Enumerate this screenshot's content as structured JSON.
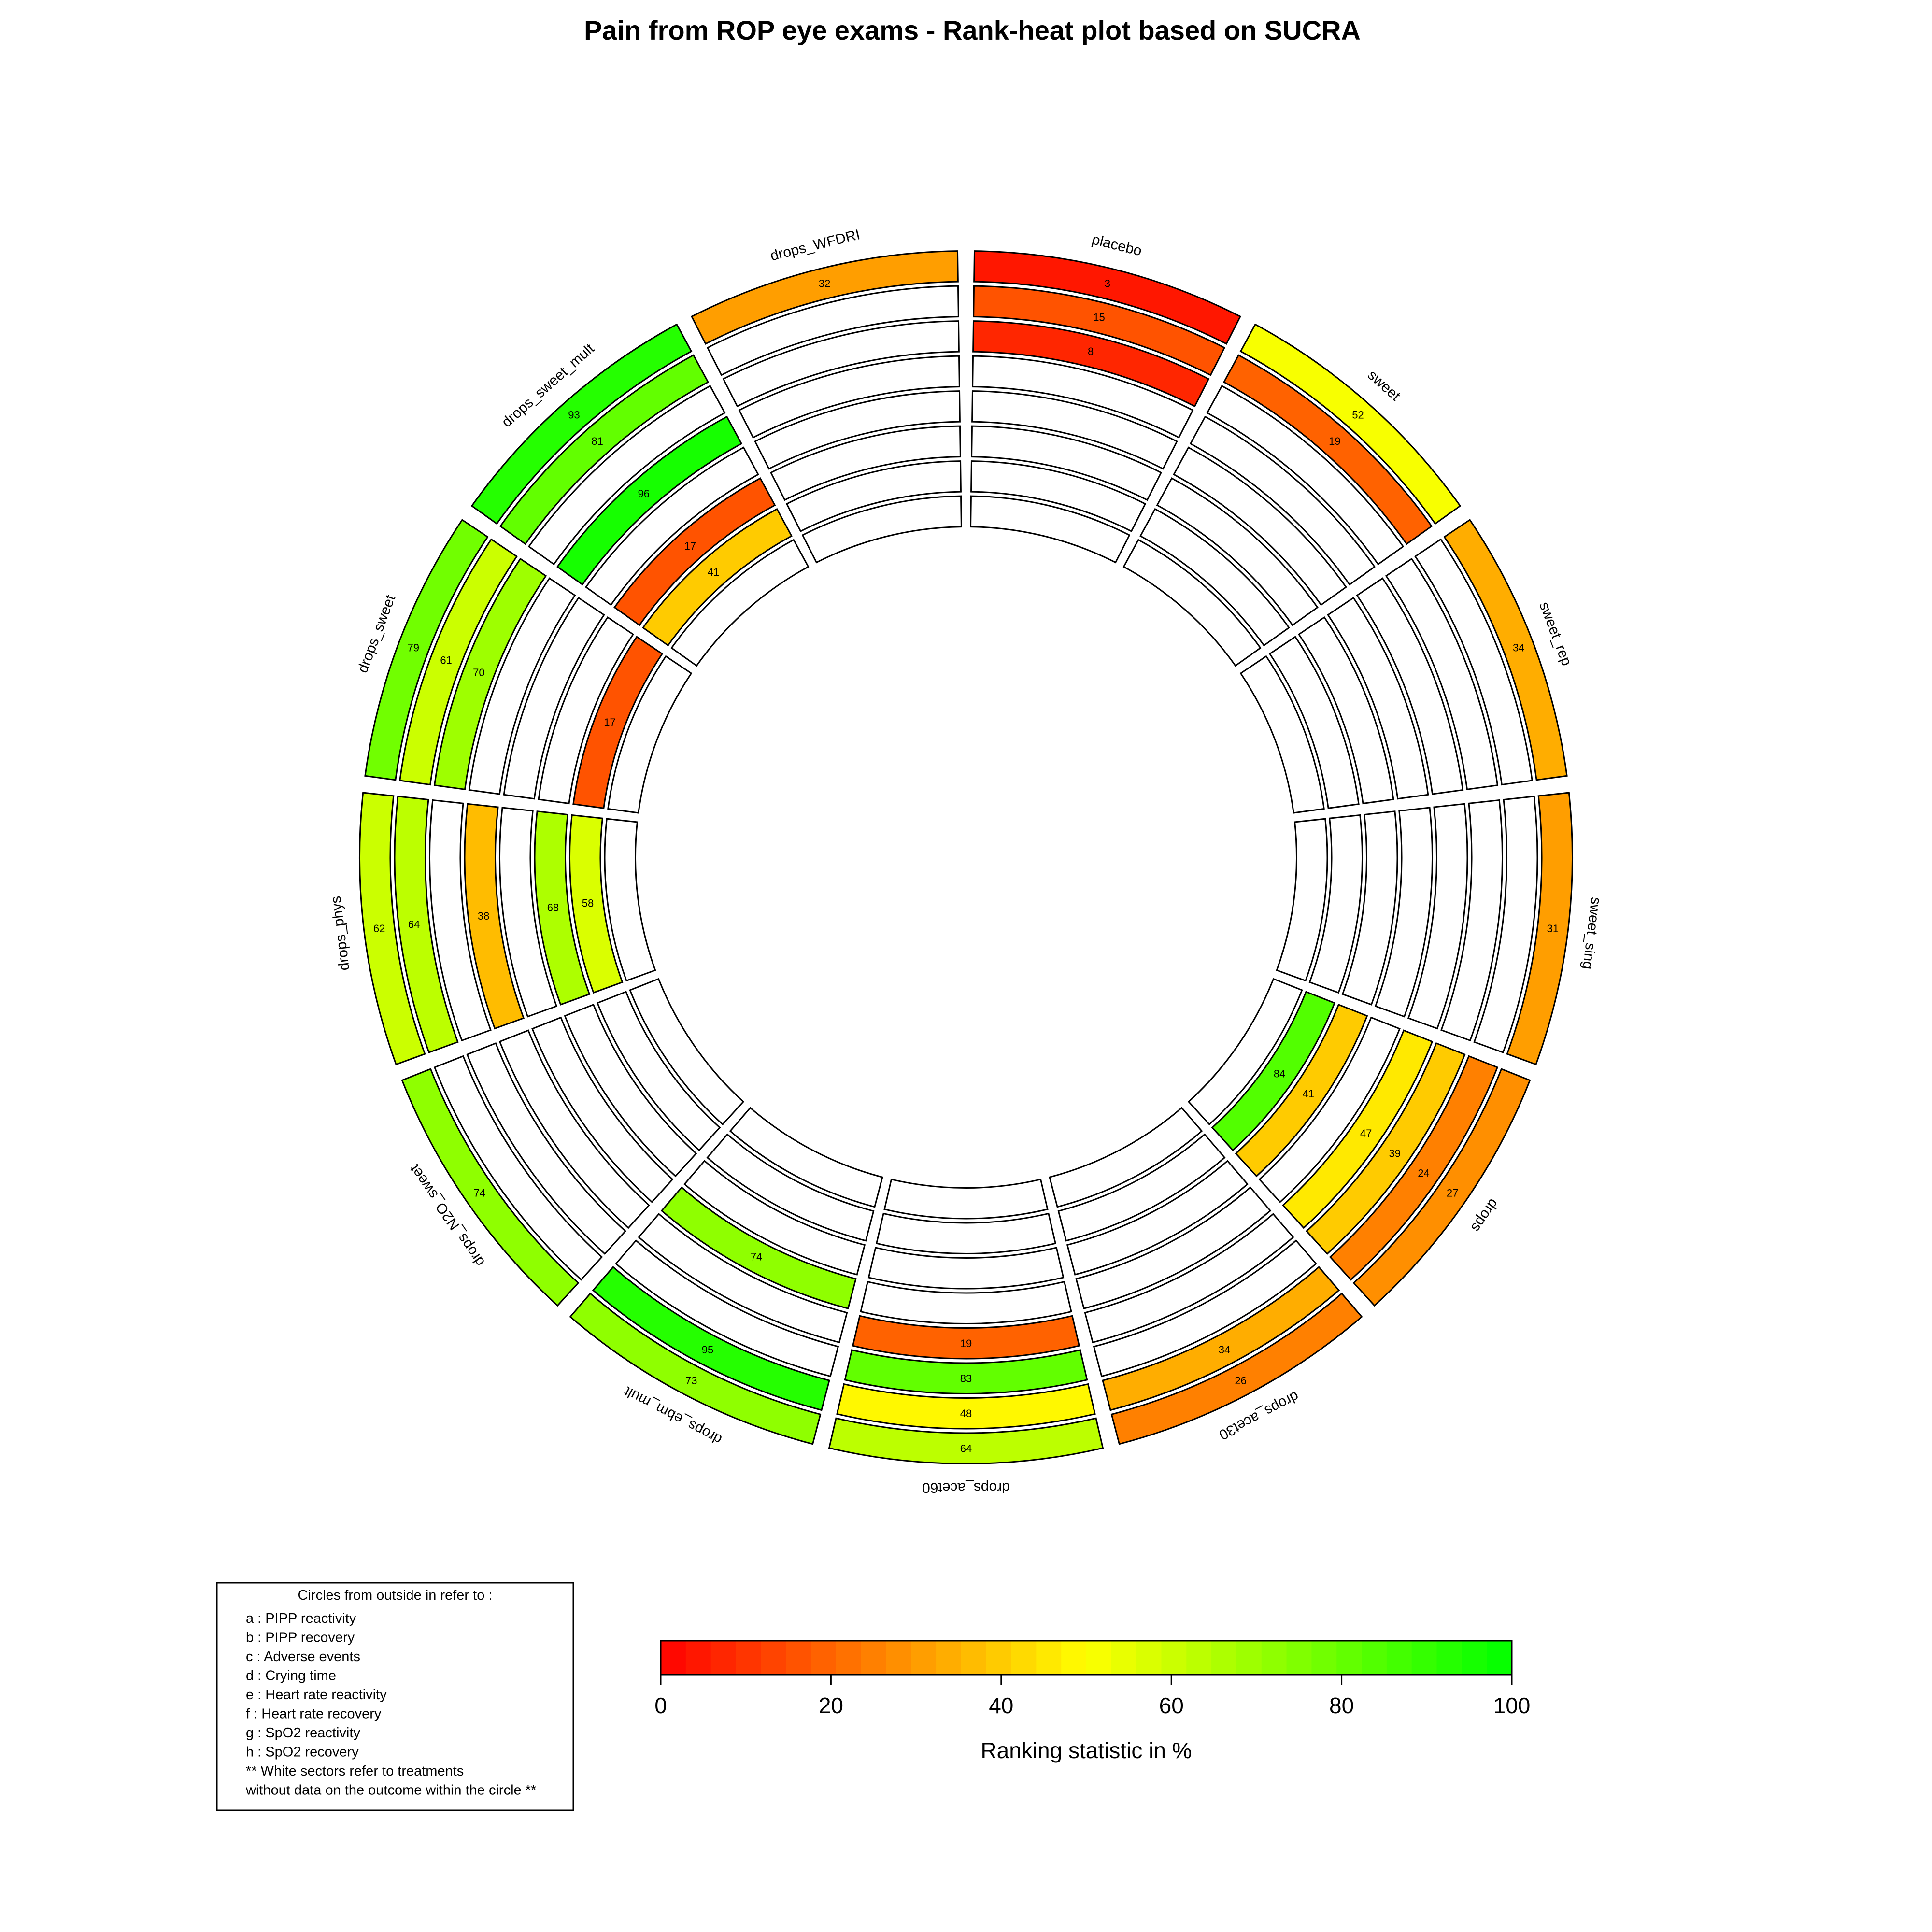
{
  "chart_data": {
    "type": "rank-heat plot",
    "title": "Pain from ROP eye exams - Rank-heat plot based on SUCRA",
    "treatments": [
      "placebo",
      "sweet",
      "sweet_rep",
      "sweet_sing",
      "drops",
      "drops_acet30",
      "drops_acet60",
      "drops_ebm_mult",
      "drops_N2O_sweet",
      "drops_phys",
      "drops_sweet",
      "drops_sweet_mult",
      "drops_WFDRI"
    ],
    "circles": [
      {
        "key": "a",
        "name": "PIPP reactivity",
        "values": [
          3,
          52,
          34,
          31,
          27,
          26,
          64,
          73,
          74,
          62,
          79,
          93,
          32
        ]
      },
      {
        "key": "b",
        "name": "PIPP recovery",
        "values": [
          15,
          19,
          null,
          null,
          24,
          34,
          48,
          95,
          null,
          64,
          61,
          81,
          null
        ]
      },
      {
        "key": "c",
        "name": "Adverse events",
        "values": [
          8,
          null,
          null,
          null,
          39,
          null,
          83,
          null,
          null,
          null,
          70,
          null,
          null
        ]
      },
      {
        "key": "d",
        "name": "Crying time",
        "values": [
          null,
          null,
          null,
          null,
          47,
          null,
          19,
          null,
          null,
          38,
          null,
          96,
          null
        ]
      },
      {
        "key": "e",
        "name": "Heart rate reactivity",
        "values": [
          null,
          null,
          null,
          null,
          null,
          null,
          null,
          74,
          null,
          null,
          null,
          null,
          null
        ]
      },
      {
        "key": "f",
        "name": "Heart rate recovery",
        "values": [
          null,
          null,
          null,
          null,
          41,
          null,
          null,
          null,
          null,
          68,
          null,
          17,
          null
        ]
      },
      {
        "key": "g",
        "name": "SpO2 reactivity",
        "values": [
          null,
          null,
          null,
          null,
          84,
          null,
          null,
          null,
          null,
          58,
          17,
          41,
          null
        ]
      },
      {
        "key": "h",
        "name": "SpO2 recovery",
        "values": [
          null,
          null,
          null,
          null,
          null,
          null,
          null,
          null,
          null,
          null,
          null,
          null,
          null
        ]
      }
    ],
    "colorbar": {
      "title": "Ranking statistic in %",
      "ticks": [
        "0",
        "20",
        "40",
        "60",
        "80",
        "100"
      ],
      "range": [
        0,
        100
      ],
      "colors": [
        "#ff0000",
        "#ffff00",
        "#00ff00"
      ]
    }
  },
  "legend": {
    "header": "Circles from outside in refer to :",
    "lines": [
      "a : PIPP reactivity",
      "b : PIPP recovery",
      "c : Adverse events",
      "d : Crying time",
      "e : Heart rate reactivity",
      "f : Heart rate recovery",
      "g : SpO2 reactivity",
      "h : SpO2 recovery",
      "** White sectors refer to treatments",
      "without data on the outcome within the circle **"
    ]
  }
}
